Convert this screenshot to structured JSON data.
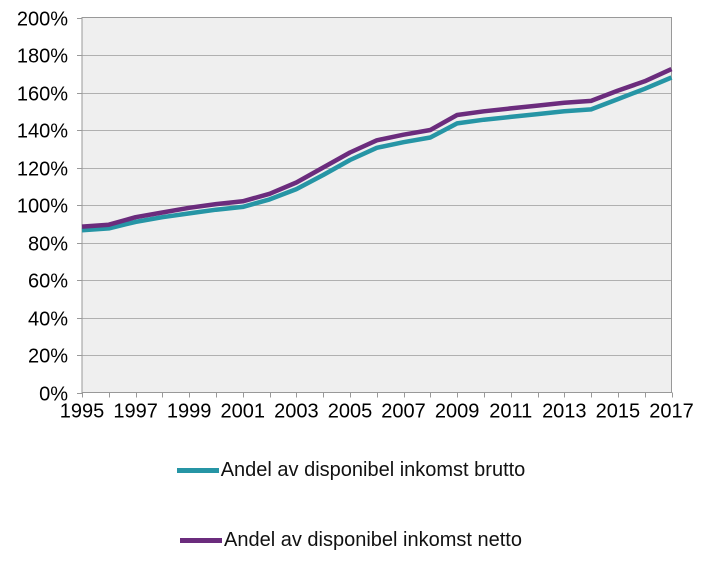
{
  "chart_data": {
    "type": "line",
    "x": [
      1995,
      1996,
      1997,
      1998,
      1999,
      2000,
      2001,
      2002,
      2003,
      2004,
      2005,
      2006,
      2007,
      2008,
      2009,
      2010,
      2011,
      2012,
      2013,
      2014,
      2015,
      2016,
      2017
    ],
    "series": [
      {
        "name": "Andel av disponibel inkomst brutto",
        "color": "#2695A5",
        "values": [
          86.5,
          87.5,
          91,
          93.5,
          95.5,
          97.5,
          99,
          103,
          108.5,
          116,
          124,
          130.5,
          133.5,
          136,
          143.5,
          145.5,
          147,
          148.5,
          150,
          151,
          156.5,
          162,
          168
        ]
      },
      {
        "name": "Andel av disponibel inkomst netto",
        "color": "#6B2C7D",
        "values": [
          88.5,
          89.5,
          93.5,
          96,
          98.5,
          100.5,
          102,
          106,
          112,
          120,
          128,
          134.5,
          137.5,
          140,
          148,
          150,
          151.5,
          153,
          154.5,
          155.5,
          161,
          166,
          172.5
        ]
      }
    ],
    "title": "",
    "xlabel": "",
    "ylabel": "",
    "ylim": [
      0,
      200
    ],
    "y_tick_labels": [
      "0%",
      "20%",
      "40%",
      "60%",
      "80%",
      "100%",
      "120%",
      "140%",
      "160%",
      "180%",
      "200%"
    ],
    "x_tick_labels": [
      "1995",
      "1997",
      "1999",
      "2001",
      "2003",
      "2005",
      "2007",
      "2009",
      "2011",
      "2013",
      "2015",
      "2017"
    ],
    "grid": "horizontal",
    "legend_position": "bottom",
    "plot_background": "#EFEFEF",
    "gridline_color": "#B0B0B0",
    "axis_color": "#999999",
    "tick_color": "#999999",
    "label_color": "#000000"
  },
  "legend": {
    "items": [
      {
        "label": "Andel av disponibel inkomst brutto",
        "color": "#2695A5"
      },
      {
        "label": "Andel av disponibel inkomst netto",
        "color": "#6B2C7D"
      }
    ]
  }
}
